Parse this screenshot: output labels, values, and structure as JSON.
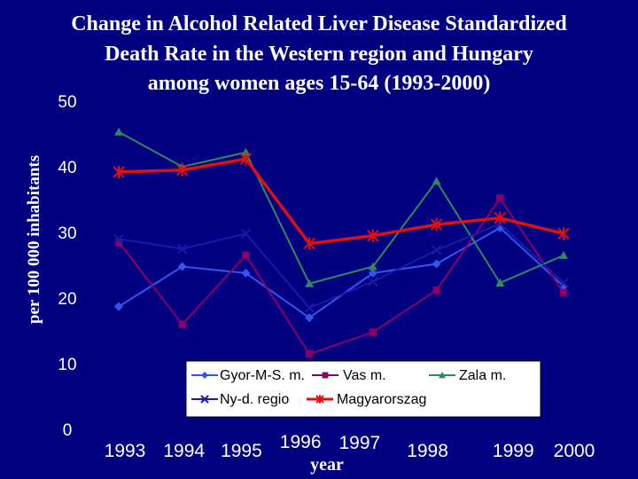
{
  "chart_data": {
    "type": "line",
    "title_lines": [
      "Change in Alcohol Related Liver Disease Standardized",
      "Death Rate in the Western region and Hungary",
      "among women ages 15-64 (1993-2000)"
    ],
    "xlabel": "year",
    "ylabel": "per 100 000 inhabitants",
    "ylim": [
      0,
      50
    ],
    "yticks": [
      0,
      10,
      20,
      30,
      40,
      50
    ],
    "x": [
      "1993",
      "1994",
      "1995",
      "1996",
      "1997",
      "1998",
      "1999",
      "2000"
    ],
    "grid": false,
    "legend_position": "bottom-right",
    "series": [
      {
        "name": "Gyor-M-S. m.",
        "color": "#3355ee",
        "marker": "diamond",
        "values": [
          18.7,
          24.8,
          23.8,
          17.0,
          23.8,
          25.2,
          30.7,
          21.8
        ]
      },
      {
        "name": "Vas m.",
        "color": "#880066",
        "marker": "square",
        "values": [
          28.5,
          16.0,
          26.5,
          11.5,
          14.8,
          21.2,
          35.2,
          20.8
        ]
      },
      {
        "name": "Zala m.",
        "color": "#2e8b57",
        "marker": "triangle",
        "values": [
          45.3,
          40.0,
          42.2,
          22.2,
          24.8,
          37.8,
          22.3,
          26.5
        ]
      },
      {
        "name": "Ny-d. regio",
        "color": "#1a1aaa",
        "marker": "x",
        "values": [
          29.0,
          27.5,
          29.8,
          18.5,
          22.5,
          27.3,
          31.3,
          22.3
        ]
      },
      {
        "name": "Magyarorszag",
        "color": "#e01010",
        "marker": "star",
        "values": [
          39.2,
          39.5,
          41.2,
          28.3,
          29.5,
          31.2,
          32.2,
          29.8
        ]
      }
    ]
  }
}
